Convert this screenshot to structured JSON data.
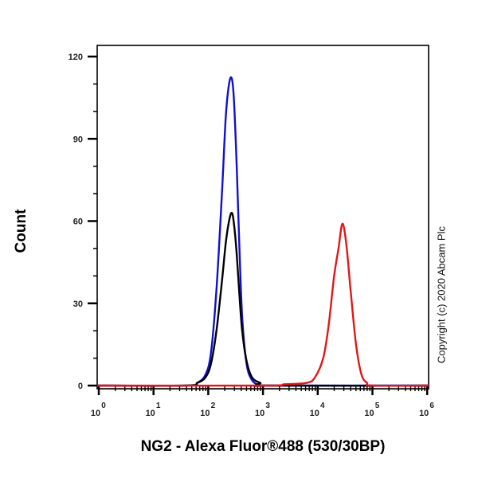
{
  "chart_data": {
    "type": "line",
    "title": "",
    "xlabel": "NG2 - Alexa Fluor®488 (530/30BP)",
    "ylabel": "Count",
    "xscale": "log",
    "xlim": [
      1,
      1000000
    ],
    "ylim": [
      0,
      120
    ],
    "x_ticks": [
      {
        "base": "10",
        "exp": "0"
      },
      {
        "base": "10",
        "exp": "1"
      },
      {
        "base": "10",
        "exp": "2"
      },
      {
        "base": "10",
        "exp": "3"
      },
      {
        "base": "10",
        "exp": "4"
      },
      {
        "base": "10",
        "exp": "5"
      },
      {
        "base": "10",
        "exp": "6"
      }
    ],
    "y_ticks": [
      "0",
      "30",
      "60",
      "90",
      "120"
    ],
    "grid": false,
    "legend": null,
    "series": [
      {
        "name": "blue histogram",
        "color": "#1010d0",
        "log10_x": [
          1.6,
          1.8,
          1.95,
          2.05,
          2.15,
          2.25,
          2.32,
          2.38,
          2.43,
          2.47,
          2.52,
          2.57,
          2.62,
          2.7,
          2.8,
          2.95,
          3.1
        ],
        "values": [
          0,
          1,
          4,
          12,
          35,
          70,
          98,
          110,
          112,
          104,
          80,
          50,
          25,
          8,
          2,
          0,
          0
        ]
      },
      {
        "name": "black histogram",
        "color": "#000000",
        "log10_x": [
          1.6,
          1.8,
          1.95,
          2.05,
          2.15,
          2.25,
          2.32,
          2.38,
          2.43,
          2.47,
          2.52,
          2.57,
          2.62,
          2.7,
          2.8,
          2.95,
          3.15
        ],
        "values": [
          0,
          1,
          3,
          8,
          20,
          38,
          52,
          60,
          63,
          59,
          48,
          33,
          20,
          9,
          3,
          1,
          0
        ]
      },
      {
        "name": "red histogram",
        "color": "#e01818",
        "log10_x": [
          3.0,
          3.4,
          3.8,
          3.95,
          4.1,
          4.2,
          4.3,
          4.38,
          4.45,
          4.52,
          4.6,
          4.7,
          4.8,
          4.9,
          5.0
        ],
        "values": [
          0,
          0.5,
          1,
          3,
          10,
          22,
          40,
          50,
          59,
          52,
          35,
          15,
          4,
          1,
          0
        ]
      }
    ],
    "peaks": [
      {
        "series": "blue histogram",
        "x": 270,
        "count": 112
      },
      {
        "series": "black histogram",
        "x": 280,
        "count": 63
      },
      {
        "series": "red histogram",
        "x": 36000,
        "count": 59
      }
    ]
  },
  "labels": {
    "ylabel": "Count",
    "xlabel": "NG2 - Alexa Fluor®488 (530/30BP)",
    "copyright": "Copyright (c) 2020 Abcam Plc"
  }
}
